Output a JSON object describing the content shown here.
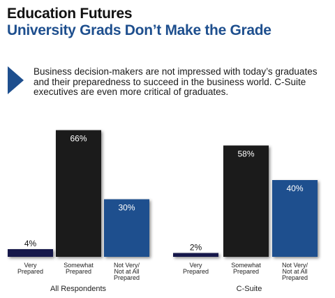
{
  "header": {
    "title": "Education Futures",
    "subtitle": "University Grads Don’t Make the Grade"
  },
  "intro_text": "Business decision-makers are not impressed with today’s graduates and their preparedness to succeed in the business world. C-Suite executives are even more critical of graduates.",
  "icons": {
    "bullet": "right-triangle-arrow-icon"
  },
  "colors": {
    "brand_blue": "#1e4f8e",
    "very_prepared": "#16184a",
    "somewhat_prepared": "#1b1b1b",
    "not_very": "#1e4f8e"
  },
  "chart_data": [
    {
      "type": "bar",
      "group_label": "All Respondents",
      "categories": [
        "Very Prepared",
        "Somewhat Prepared",
        "Not Very/ Not at All Prepared"
      ],
      "values": [
        4,
        66,
        30
      ],
      "value_labels": [
        "4%",
        "66%",
        "30%"
      ],
      "unit": "%",
      "ylim": [
        0,
        70
      ],
      "grid": false,
      "legend": "none"
    },
    {
      "type": "bar",
      "group_label": "C-Suite",
      "categories": [
        "Very Prepared",
        "Somewhat Prepared",
        "Not Very/ Not at All Prepared"
      ],
      "values": [
        2,
        58,
        40
      ],
      "value_labels": [
        "2%",
        "58%",
        "40%"
      ],
      "unit": "%",
      "ylim": [
        0,
        70
      ],
      "grid": false,
      "legend": "none"
    }
  ]
}
